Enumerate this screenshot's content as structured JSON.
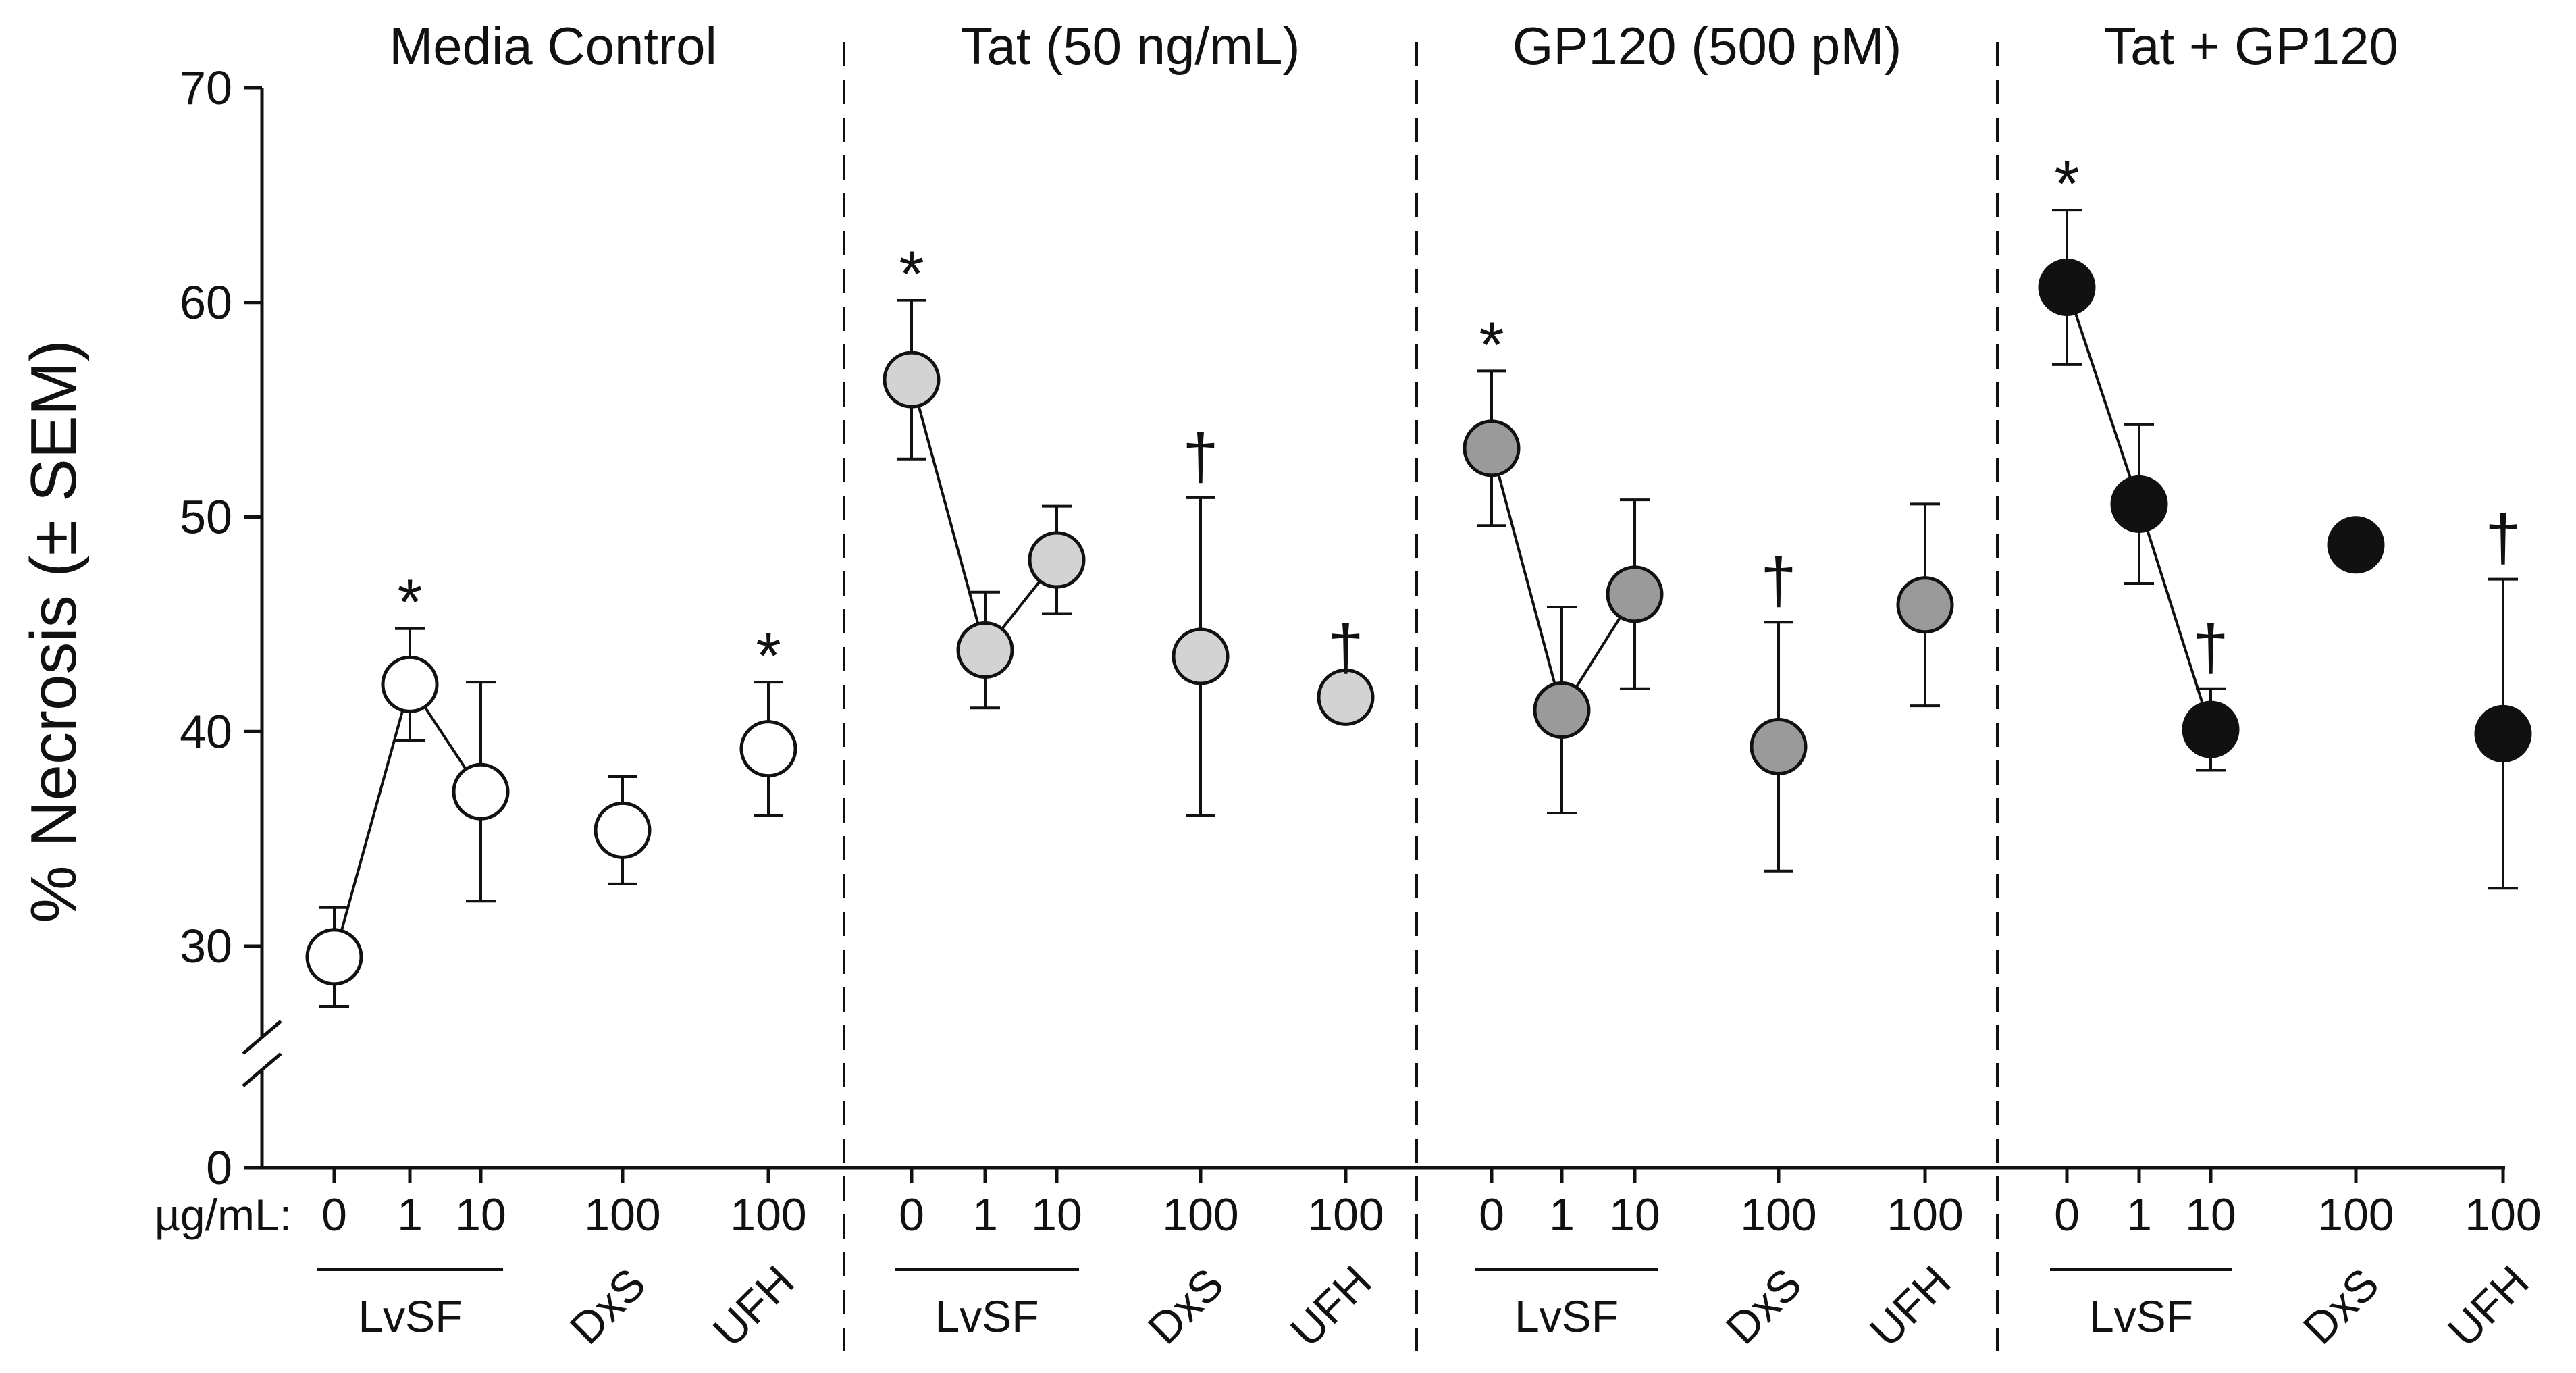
{
  "chart_data": {
    "type": "scatter",
    "ylabel": "% Necrosis (± SEM)",
    "y_ticks": [
      "0",
      "30",
      "40",
      "50",
      "60",
      "70"
    ],
    "y_break": "30 to 0 axis break",
    "ylim": [
      25,
      70
    ],
    "unit_label": "µg/mL:",
    "panels": [
      {
        "title": "Media Control",
        "color": "#ffffff",
        "points": [
          {
            "dose": "0",
            "group": "LvSF",
            "y": 29.5,
            "sem": 2.3,
            "mark": ""
          },
          {
            "dose": "1",
            "group": "LvSF",
            "y": 42.2,
            "sem": 2.6,
            "mark": "*"
          },
          {
            "dose": "10",
            "group": "LvSF",
            "y": 37.2,
            "sem": 5.1,
            "mark": ""
          },
          {
            "dose": "100",
            "group": "DxS",
            "y": 35.4,
            "sem": 2.5,
            "mark": ""
          },
          {
            "dose": "100",
            "group": "UFH",
            "y": 39.2,
            "sem": 3.1,
            "mark": "*"
          }
        ]
      },
      {
        "title": "Tat (50 ng/mL)",
        "color": "#d3d3d3",
        "points": [
          {
            "dose": "0",
            "group": "LvSF",
            "y": 56.4,
            "sem": 3.7,
            "mark": "*"
          },
          {
            "dose": "1",
            "group": "LvSF",
            "y": 43.8,
            "sem": 2.7,
            "mark": ""
          },
          {
            "dose": "10",
            "group": "LvSF",
            "y": 48.0,
            "sem": 2.5,
            "mark": ""
          },
          {
            "dose": "100",
            "group": "DxS",
            "y": 43.5,
            "sem": 7.4,
            "mark": "†"
          },
          {
            "dose": "100",
            "group": "UFH",
            "y": 41.6,
            "sem": 0.4,
            "mark": "†"
          }
        ]
      },
      {
        "title": "GP120 (500 pM)",
        "color": "#9a9a9a",
        "points": [
          {
            "dose": "0",
            "group": "LvSF",
            "y": 53.2,
            "sem": 3.6,
            "mark": "*"
          },
          {
            "dose": "1",
            "group": "LvSF",
            "y": 41.0,
            "sem": 4.8,
            "mark": ""
          },
          {
            "dose": "10",
            "group": "LvSF",
            "y": 46.4,
            "sem": 4.4,
            "mark": ""
          },
          {
            "dose": "100",
            "group": "DxS",
            "y": 39.3,
            "sem": 5.8,
            "mark": "†"
          },
          {
            "dose": "100",
            "group": "UFH",
            "y": 45.9,
            "sem": 4.7,
            "mark": ""
          }
        ]
      },
      {
        "title": "Tat + GP120",
        "color": "#111111",
        "points": [
          {
            "dose": "0",
            "group": "LvSF",
            "y": 60.7,
            "sem": 3.6,
            "mark": "*"
          },
          {
            "dose": "1",
            "group": "LvSF",
            "y": 50.6,
            "sem": 3.7,
            "mark": ""
          },
          {
            "dose": "10",
            "group": "LvSF",
            "y": 40.1,
            "sem": 1.9,
            "mark": "†"
          },
          {
            "dose": "100",
            "group": "DxS",
            "y": 48.7,
            "sem": 1.1,
            "mark": ""
          },
          {
            "dose": "100",
            "group": "UFH",
            "y": 39.9,
            "sem": 7.2,
            "mark": "†"
          }
        ]
      }
    ]
  }
}
